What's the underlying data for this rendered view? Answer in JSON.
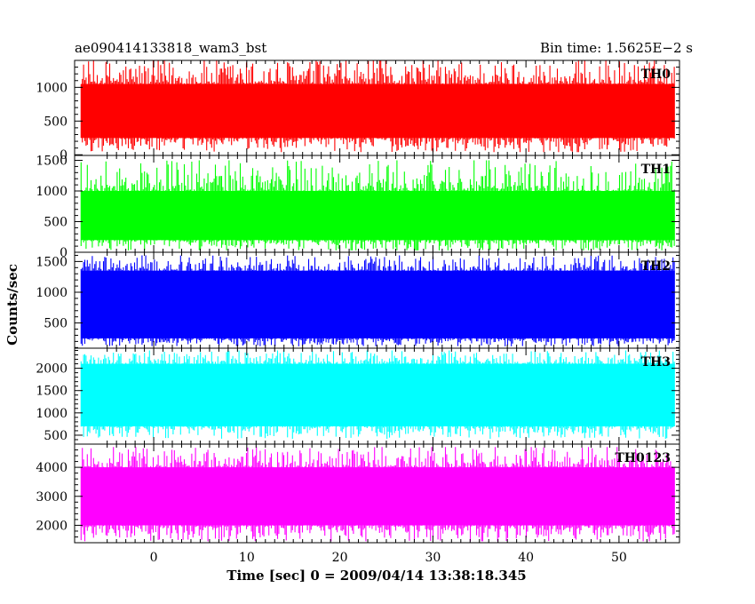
{
  "header": {
    "title": "ae090414133818_wam3_bst",
    "bin_time": "Bin time: 1.5625E−2 s"
  },
  "chart_data": {
    "type": "line",
    "xlabel": "Time [sec] 0 = 2009/04/14 13:38:18.345",
    "ylabel": "Counts/sec",
    "xlim": [
      -8.5,
      56.5
    ],
    "x_ticks": [
      "0",
      "10",
      "20",
      "30",
      "40",
      "50"
    ],
    "x_tick_values": [
      0,
      10,
      20,
      30,
      40,
      50
    ],
    "data_x_range": [
      -7.8,
      56.0
    ],
    "bin_time_s": 0.015625,
    "grid": false,
    "panels": [
      {
        "name": "TH0",
        "color": "#ff0000",
        "ylim": [
          -10,
          1400
        ],
        "ticks": [
          0,
          500,
          1000
        ],
        "tick_labels": [
          "0",
          "500",
          "1000"
        ],
        "minor_step": 100,
        "typical_range": [
          250,
          1050
        ],
        "extreme_range": [
          40,
          1400
        ]
      },
      {
        "name": "TH1",
        "color": "#00ff00",
        "ylim": [
          0,
          1580
        ],
        "ticks": [
          0,
          500,
          1000,
          1500
        ],
        "tick_labels": [
          "0",
          "500",
          "1000",
          "1500"
        ],
        "minor_step": 100,
        "typical_range": [
          200,
          1000
        ],
        "extreme_range": [
          30,
          1500
        ]
      },
      {
        "name": "TH2",
        "color": "#0000ff",
        "ylim": [
          90,
          1650
        ],
        "ticks": [
          500,
          1000,
          1500
        ],
        "tick_labels": [
          "500",
          "1000",
          "1500"
        ],
        "minor_step": 100,
        "typical_range": [
          250,
          1350
        ],
        "extreme_range": [
          120,
          1600
        ]
      },
      {
        "name": "TH3",
        "color": "#00ffff",
        "ylim": [
          300,
          2450
        ],
        "ticks": [
          500,
          1000,
          1500,
          2000
        ],
        "tick_labels": [
          "500",
          "1000",
          "1500",
          "2000"
        ],
        "minor_step": 100,
        "typical_range": [
          700,
          2100
        ],
        "extreme_range": [
          420,
          2400
        ]
      },
      {
        "name": "TH0123",
        "color": "#ff00ff",
        "ylim": [
          1400,
          4800
        ],
        "ticks": [
          2000,
          3000,
          4000
        ],
        "tick_labels": [
          "2000",
          "3000",
          "4000"
        ],
        "minor_step": 200,
        "typical_range": [
          2000,
          4000
        ],
        "extreme_range": [
          1450,
          4700
        ]
      }
    ]
  }
}
